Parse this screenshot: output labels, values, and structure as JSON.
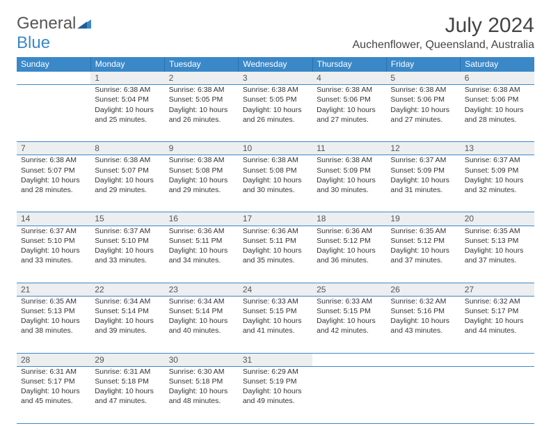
{
  "logo": {
    "word1": "General",
    "word2": "Blue"
  },
  "title": "July 2024",
  "location": "Auchenflower, Queensland, Australia",
  "colors": {
    "header_bg": "#3a88c8",
    "header_text": "#ffffff",
    "daynum_bg": "#eceef0",
    "border": "#3a88c8",
    "body_text": "#333333",
    "logo_gray": "#555555",
    "logo_blue": "#3a88c8",
    "page_bg": "#ffffff"
  },
  "weekdays": [
    "Sunday",
    "Monday",
    "Tuesday",
    "Wednesday",
    "Thursday",
    "Friday",
    "Saturday"
  ],
  "weeks": [
    [
      null,
      {
        "n": "1",
        "sr": "6:38 AM",
        "ss": "5:04 PM",
        "dl": "10 hours and 25 minutes."
      },
      {
        "n": "2",
        "sr": "6:38 AM",
        "ss": "5:05 PM",
        "dl": "10 hours and 26 minutes."
      },
      {
        "n": "3",
        "sr": "6:38 AM",
        "ss": "5:05 PM",
        "dl": "10 hours and 26 minutes."
      },
      {
        "n": "4",
        "sr": "6:38 AM",
        "ss": "5:06 PM",
        "dl": "10 hours and 27 minutes."
      },
      {
        "n": "5",
        "sr": "6:38 AM",
        "ss": "5:06 PM",
        "dl": "10 hours and 27 minutes."
      },
      {
        "n": "6",
        "sr": "6:38 AM",
        "ss": "5:06 PM",
        "dl": "10 hours and 28 minutes."
      }
    ],
    [
      {
        "n": "7",
        "sr": "6:38 AM",
        "ss": "5:07 PM",
        "dl": "10 hours and 28 minutes."
      },
      {
        "n": "8",
        "sr": "6:38 AM",
        "ss": "5:07 PM",
        "dl": "10 hours and 29 minutes."
      },
      {
        "n": "9",
        "sr": "6:38 AM",
        "ss": "5:08 PM",
        "dl": "10 hours and 29 minutes."
      },
      {
        "n": "10",
        "sr": "6:38 AM",
        "ss": "5:08 PM",
        "dl": "10 hours and 30 minutes."
      },
      {
        "n": "11",
        "sr": "6:38 AM",
        "ss": "5:09 PM",
        "dl": "10 hours and 30 minutes."
      },
      {
        "n": "12",
        "sr": "6:37 AM",
        "ss": "5:09 PM",
        "dl": "10 hours and 31 minutes."
      },
      {
        "n": "13",
        "sr": "6:37 AM",
        "ss": "5:09 PM",
        "dl": "10 hours and 32 minutes."
      }
    ],
    [
      {
        "n": "14",
        "sr": "6:37 AM",
        "ss": "5:10 PM",
        "dl": "10 hours and 33 minutes."
      },
      {
        "n": "15",
        "sr": "6:37 AM",
        "ss": "5:10 PM",
        "dl": "10 hours and 33 minutes."
      },
      {
        "n": "16",
        "sr": "6:36 AM",
        "ss": "5:11 PM",
        "dl": "10 hours and 34 minutes."
      },
      {
        "n": "17",
        "sr": "6:36 AM",
        "ss": "5:11 PM",
        "dl": "10 hours and 35 minutes."
      },
      {
        "n": "18",
        "sr": "6:36 AM",
        "ss": "5:12 PM",
        "dl": "10 hours and 36 minutes."
      },
      {
        "n": "19",
        "sr": "6:35 AM",
        "ss": "5:12 PM",
        "dl": "10 hours and 37 minutes."
      },
      {
        "n": "20",
        "sr": "6:35 AM",
        "ss": "5:13 PM",
        "dl": "10 hours and 37 minutes."
      }
    ],
    [
      {
        "n": "21",
        "sr": "6:35 AM",
        "ss": "5:13 PM",
        "dl": "10 hours and 38 minutes."
      },
      {
        "n": "22",
        "sr": "6:34 AM",
        "ss": "5:14 PM",
        "dl": "10 hours and 39 minutes."
      },
      {
        "n": "23",
        "sr": "6:34 AM",
        "ss": "5:14 PM",
        "dl": "10 hours and 40 minutes."
      },
      {
        "n": "24",
        "sr": "6:33 AM",
        "ss": "5:15 PM",
        "dl": "10 hours and 41 minutes."
      },
      {
        "n": "25",
        "sr": "6:33 AM",
        "ss": "5:15 PM",
        "dl": "10 hours and 42 minutes."
      },
      {
        "n": "26",
        "sr": "6:32 AM",
        "ss": "5:16 PM",
        "dl": "10 hours and 43 minutes."
      },
      {
        "n": "27",
        "sr": "6:32 AM",
        "ss": "5:17 PM",
        "dl": "10 hours and 44 minutes."
      }
    ],
    [
      {
        "n": "28",
        "sr": "6:31 AM",
        "ss": "5:17 PM",
        "dl": "10 hours and 45 minutes."
      },
      {
        "n": "29",
        "sr": "6:31 AM",
        "ss": "5:18 PM",
        "dl": "10 hours and 47 minutes."
      },
      {
        "n": "30",
        "sr": "6:30 AM",
        "ss": "5:18 PM",
        "dl": "10 hours and 48 minutes."
      },
      {
        "n": "31",
        "sr": "6:29 AM",
        "ss": "5:19 PM",
        "dl": "10 hours and 49 minutes."
      },
      null,
      null,
      null
    ]
  ],
  "labels": {
    "sunrise": "Sunrise:",
    "sunset": "Sunset:",
    "daylight": "Daylight:"
  }
}
